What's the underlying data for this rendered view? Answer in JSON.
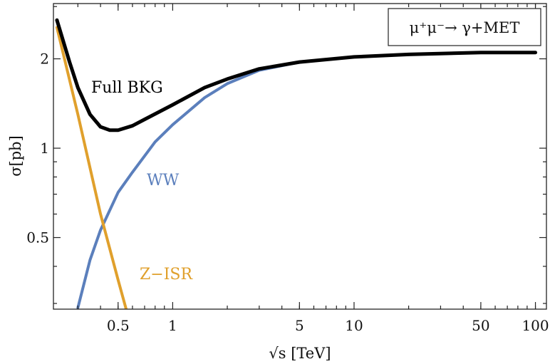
{
  "chart_data": {
    "type": "line",
    "title": "",
    "annotation": "μ⁺μ⁻→ γ+MET",
    "xlabel": "√s [TeV]",
    "ylabel": "σ[pb]",
    "xscale": "log",
    "yscale": "log",
    "xlim": [
      0.22,
      115
    ],
    "ylim": [
      0.287,
      3.07
    ],
    "grid": false,
    "x_ticks": [
      0.5,
      1,
      5,
      10,
      50,
      100
    ],
    "x_tick_labels": [
      "0.5",
      "1",
      "5",
      "10",
      "50",
      "100"
    ],
    "y_ticks": [
      0.5,
      1,
      2
    ],
    "y_tick_labels": [
      "0.5",
      "1",
      "2"
    ],
    "series": [
      {
        "name": "Full BKG",
        "color": "#000000",
        "x": [
          0.23,
          0.27,
          0.3,
          0.35,
          0.4,
          0.45,
          0.5,
          0.6,
          0.7,
          1.0,
          1.5,
          2,
          3,
          5,
          10,
          20,
          50,
          100
        ],
        "y": [
          2.7,
          1.95,
          1.6,
          1.3,
          1.18,
          1.15,
          1.15,
          1.19,
          1.25,
          1.4,
          1.6,
          1.71,
          1.85,
          1.95,
          2.03,
          2.07,
          2.1,
          2.1
        ]
      },
      {
        "name": "WW",
        "color": "#5b7fbc",
        "x": [
          0.3,
          0.35,
          0.4,
          0.5,
          0.6,
          0.8,
          1.0,
          1.5,
          2,
          3,
          5,
          10,
          20,
          50,
          100
        ],
        "y": [
          0.29,
          0.42,
          0.53,
          0.71,
          0.83,
          1.05,
          1.2,
          1.48,
          1.65,
          1.83,
          1.95,
          2.03,
          2.07,
          2.1,
          2.1
        ]
      },
      {
        "name": "Z-ISR",
        "color": "#e0a02c",
        "x": [
          0.23,
          0.3,
          0.4,
          0.5,
          0.56
        ],
        "y": [
          2.55,
          1.3,
          0.6,
          0.36,
          0.28
        ]
      }
    ],
    "labels": {
      "full_bkg": "Full BKG",
      "ww": "WW",
      "zisr": "Z−ISR"
    }
  }
}
